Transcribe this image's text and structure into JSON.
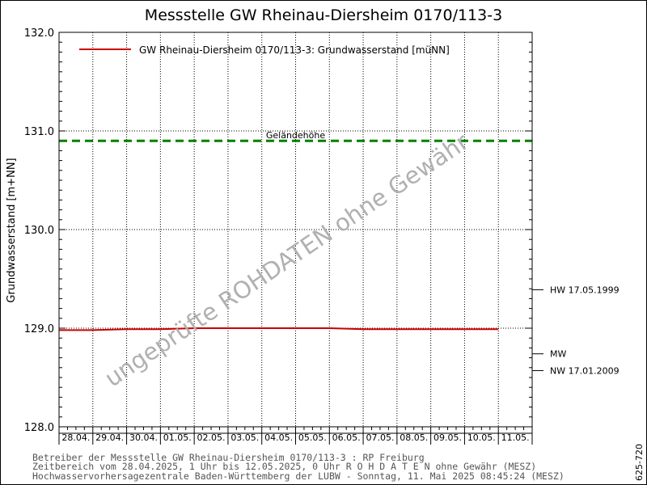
{
  "chart_data": {
    "type": "line",
    "title": "Messstelle GW Rheinau-Diersheim 0170/113-3",
    "ylabel": "Grundwasserstand [m+NN]",
    "ylim": [
      128.0,
      132.0
    ],
    "y_ticks": [
      "128.0",
      "129.0",
      "130.0",
      "131.0",
      "132.0"
    ],
    "x_ticks": [
      "28.04.",
      "29.04.",
      "30.04.",
      "01.05.",
      "02.05.",
      "03.05.",
      "04.05.",
      "05.05.",
      "06.05.",
      "07.05.",
      "08.05.",
      "09.05.",
      "10.05.",
      "11.05."
    ],
    "grid": true,
    "legend_position": "top-left",
    "series": [
      {
        "name": "GW Rheinau-Diersheim 0170/113-3: Grundwasserstand  [müNN]",
        "color": "#cc0000",
        "x_days": [
          0,
          1.0,
          2.0,
          3.0,
          4.0,
          5.0,
          6.0,
          7.0,
          8.0,
          9.0,
          10.0,
          11.0,
          12.0,
          13.0
        ],
        "values": [
          128.98,
          128.98,
          128.99,
          128.99,
          129.0,
          129.0,
          129.0,
          129.0,
          129.0,
          128.99,
          128.99,
          128.99,
          128.99,
          128.99
        ]
      }
    ],
    "reference_lines": [
      {
        "label": "Geländehöhe",
        "value": 130.9,
        "color": "#008000",
        "style": "dashed"
      }
    ],
    "right_markers": [
      {
        "label": "HW 17.05.1999",
        "value": 129.39
      },
      {
        "label": "MW",
        "value": 128.74
      },
      {
        "label": "NW 17.01.2009",
        "value": 128.57
      }
    ],
    "watermark": "ungeprüfte ROHDATEN ohne Gewähr"
  },
  "footer": {
    "line1": "Betreiber der Messstelle GW Rheinau-Diersheim 0170/113-3 : RP Freiburg",
    "line2": "Zeitbereich vom 28.04.2025, 1 Uhr bis 12.05.2025, 0 Uhr   R O H D A T E N ohne Gewähr (MESZ)",
    "line3": "Hochwasservorhersagezentrale Baden-Württemberg der LUBW - Sonntag, 11. Mai 2025 08:45:24 (MESZ)",
    "side_code": "625-720"
  }
}
